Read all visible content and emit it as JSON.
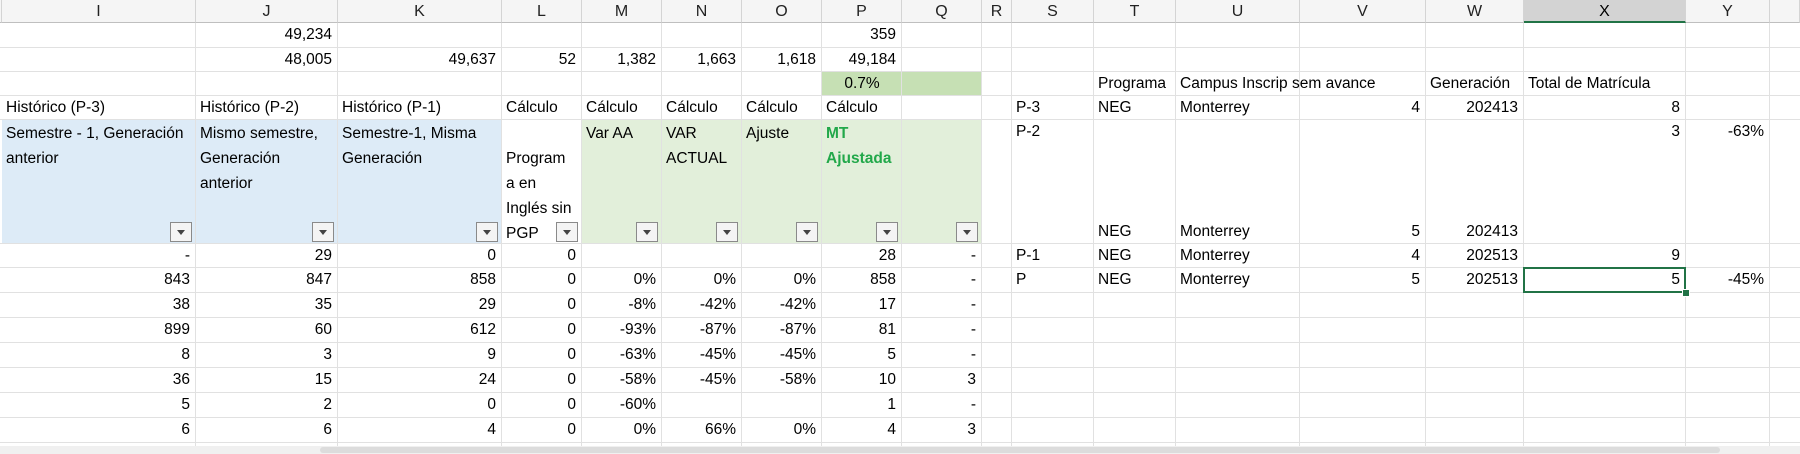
{
  "columns": [
    "I",
    "J",
    "K",
    "L",
    "M",
    "N",
    "O",
    "P",
    "Q",
    "R",
    "S",
    "T",
    "U",
    "V",
    "W",
    "X",
    "Y"
  ],
  "selected_column": "X",
  "colors": {
    "blue_fill": "#ddebf7",
    "green_fill": "#e2efda",
    "highlight_fill": "#c6e0b4",
    "accent_green": "#217346",
    "label_green": "#22a84a"
  },
  "totals": {
    "row1": {
      "J": "49,234",
      "P": "359"
    },
    "row2": {
      "J": "48,005",
      "K": "49,637",
      "L": "52",
      "M": "1,382",
      "N": "1,663",
      "O": "1,618",
      "P": "49,184"
    },
    "row3": {
      "P": "0.7%"
    }
  },
  "headers": {
    "I": "Histórico (P-3)",
    "J": "Histórico (P-2)",
    "K": "Histórico (P-1)",
    "L": "Cálculo",
    "M": "Cálculo",
    "N": "Cálculo",
    "O": "Cálculo",
    "P": "Cálculo"
  },
  "subheaders": {
    "I": "Semestre - 1, Generación anterior",
    "J": "Mismo semestre, Generación anterior",
    "K": "Semestre-1, Misma Generación",
    "L": "Program a en Inglés sin PGP",
    "M": "Var AA",
    "N": "VAR ACTUAL",
    "O": "Ajuste",
    "P": "MT Ajustada"
  },
  "rows": [
    [
      "-",
      "29",
      "0",
      "0",
      "",
      "",
      "",
      "28",
      "-"
    ],
    [
      "843",
      "847",
      "858",
      "0",
      "0%",
      "0%",
      "0%",
      "858",
      "-"
    ],
    [
      "38",
      "35",
      "29",
      "0",
      "-8%",
      "-42%",
      "-42%",
      "17",
      "-"
    ],
    [
      "899",
      "60",
      "612",
      "0",
      "-93%",
      "-87%",
      "-87%",
      "81",
      "-"
    ],
    [
      "8",
      "3",
      "9",
      "0",
      "-63%",
      "-45%",
      "-45%",
      "5",
      "-"
    ],
    [
      "36",
      "15",
      "24",
      "0",
      "-58%",
      "-45%",
      "-58%",
      "10",
      "3"
    ],
    [
      "5",
      "2",
      "0",
      "0",
      "-60%",
      "",
      "",
      "1",
      "-"
    ],
    [
      "6",
      "6",
      "4",
      "0",
      "0%",
      "66%",
      "0%",
      "4",
      "3"
    ]
  ],
  "side_table": {
    "headers": {
      "T": "Programa",
      "U": "Campus Inscrip sem avance",
      "W": "Generación",
      "X": "Total de Matrícula"
    },
    "rows": [
      {
        "S": "P-3",
        "T": "NEG",
        "U": "Monterrey",
        "V": "4",
        "W": "202413",
        "X": "8",
        "Y": ""
      },
      {
        "S": "P-2",
        "T": "",
        "U": "",
        "V": "",
        "W": "",
        "X": "3",
        "Y": "-63%"
      },
      {
        "S": "",
        "T": "NEG",
        "U": "Monterrey",
        "V": "5",
        "W": "202413",
        "X": "",
        "Y": ""
      },
      {
        "S": "P-1",
        "T": "NEG",
        "U": "Monterrey",
        "V": "4",
        "W": "202513",
        "X": "9",
        "Y": ""
      },
      {
        "S": "P",
        "T": "NEG",
        "U": "Monterrey",
        "V": "5",
        "W": "202513",
        "X": "5",
        "Y": "-45%"
      }
    ]
  },
  "icons": {
    "filter": "dropdown-filter-icon"
  }
}
